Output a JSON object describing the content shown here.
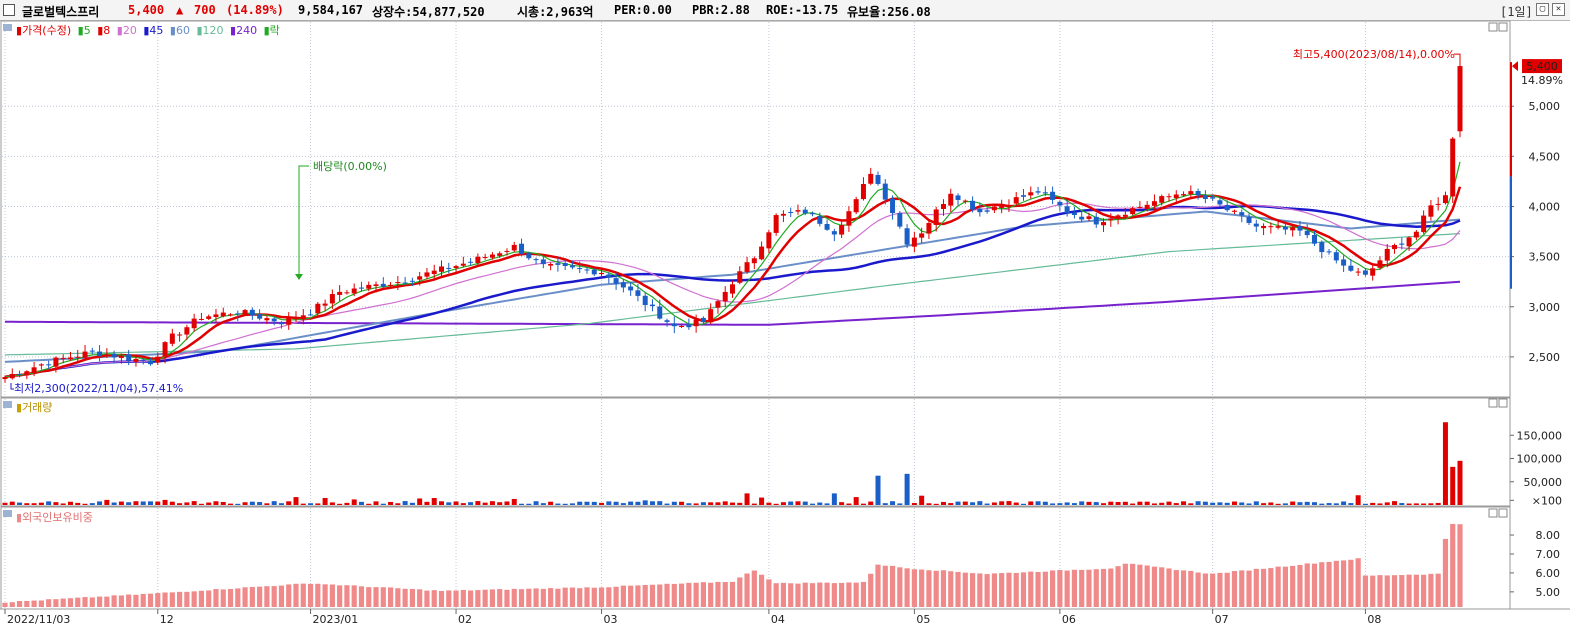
{
  "header": {
    "stock_name": "글로벌텍스프리",
    "price": "5,400",
    "change_arrow": "▲",
    "change": "700",
    "change_pct": "(14.89%)",
    "volume": "9,584,167",
    "listed_shares": "상장수:54,877,520",
    "market_cap": "시총:2,963억",
    "per": "PER:0.00",
    "pbr": "PBR:2.88",
    "roe": "ROE:-13.75",
    "retention": "유보율:256.08",
    "period": "[1일]"
  },
  "legend": {
    "price_label": "가격(수정)",
    "ma_items": [
      {
        "label": "5",
        "color": "#22aa22"
      },
      {
        "label": "8",
        "color": "#e00000"
      },
      {
        "label": "20",
        "color": "#d070d0"
      },
      {
        "label": "45",
        "color": "#1a1acc"
      },
      {
        "label": "60",
        "color": "#6a8fc8"
      },
      {
        "label": "120",
        "color": "#66bb99"
      },
      {
        "label": "240",
        "color": "#7722cc"
      }
    ],
    "rak_label": "락",
    "volume_label": "거래량",
    "foreign_label": "외국인보유비중"
  },
  "annotations": {
    "high": "최고5,400(2023/08/14),0.00%",
    "low": "최저2,300(2022/11/04),57.41%",
    "dividend": "배당락(0.00%)",
    "current_price_badge": "5,400",
    "current_pct": "14.89%"
  },
  "colors": {
    "up": "#e00000",
    "down": "#1a5ec8",
    "foreign": "#f08a8a"
  },
  "chart_data": [
    {
      "type": "candlestick",
      "title": "가격(수정)",
      "y_axis_ticks": [
        "5,000",
        "4,500",
        "4,000",
        "3,500",
        "3,000",
        "2,500"
      ],
      "ylim": [
        2150,
        5700
      ],
      "x_axis_labels": [
        "2022/11/03",
        "12",
        "2023/01",
        "02",
        "03",
        "04",
        "05",
        "06",
        "07",
        "08"
      ],
      "x_label_days": [
        0,
        21,
        42,
        62,
        82,
        105,
        125,
        145,
        166,
        187
      ],
      "num_days": 201,
      "close_knots": [
        [
          0,
          2300
        ],
        [
          6,
          2450
        ],
        [
          12,
          2550
        ],
        [
          20,
          2450
        ],
        [
          23,
          2700
        ],
        [
          27,
          2900
        ],
        [
          32,
          2950
        ],
        [
          38,
          2850
        ],
        [
          42,
          2950
        ],
        [
          46,
          3150
        ],
        [
          54,
          3250
        ],
        [
          64,
          3450
        ],
        [
          70,
          3600
        ],
        [
          74,
          3400
        ],
        [
          82,
          3350
        ],
        [
          86,
          3150
        ],
        [
          92,
          2800
        ],
        [
          96,
          2850
        ],
        [
          100,
          3250
        ],
        [
          103,
          3500
        ],
        [
          106,
          3900
        ],
        [
          110,
          3950
        ],
        [
          114,
          3750
        ],
        [
          117,
          4050
        ],
        [
          119,
          4350
        ],
        [
          121,
          4100
        ],
        [
          124,
          3650
        ],
        [
          126,
          3750
        ],
        [
          130,
          4150
        ],
        [
          134,
          3950
        ],
        [
          138,
          4050
        ],
        [
          142,
          4150
        ],
        [
          146,
          3950
        ],
        [
          150,
          3850
        ],
        [
          156,
          4000
        ],
        [
          162,
          4150
        ],
        [
          166,
          4050
        ],
        [
          172,
          3800
        ],
        [
          178,
          3750
        ],
        [
          184,
          3400
        ],
        [
          187,
          3300
        ],
        [
          190,
          3550
        ],
        [
          194,
          3750
        ],
        [
          196,
          4000
        ],
        [
          198,
          4100
        ],
        [
          199,
          4700
        ],
        [
          200,
          5400
        ]
      ],
      "moving_average_periods": [
        5,
        8,
        20,
        45,
        60,
        120,
        240
      ],
      "ma240_knots": [
        [
          0,
          2850
        ],
        [
          105,
          2820
        ],
        [
          130,
          2920
        ],
        [
          160,
          3050
        ],
        [
          200,
          3250
        ]
      ],
      "ma120_knots": [
        [
          0,
          2520
        ],
        [
          40,
          2580
        ],
        [
          80,
          2830
        ],
        [
          120,
          3200
        ],
        [
          160,
          3550
        ],
        [
          200,
          3730
        ]
      ],
      "ma60_knots": [
        [
          0,
          2450
        ],
        [
          30,
          2560
        ],
        [
          60,
          2950
        ],
        [
          82,
          3220
        ],
        [
          100,
          3320
        ],
        [
          140,
          3800
        ],
        [
          165,
          3950
        ],
        [
          185,
          3780
        ],
        [
          200,
          3870
        ]
      ]
    },
    {
      "type": "bar",
      "title": "거래량",
      "y_axis_ticks": [
        "150,000",
        "100,000",
        "50,000",
        "×100"
      ],
      "ylim": [
        0,
        200000
      ],
      "units": "×100",
      "spikes": [
        [
          14,
          11000
        ],
        [
          22,
          11000
        ],
        [
          40,
          17000
        ],
        [
          44,
          15000
        ],
        [
          48,
          12000
        ],
        [
          57,
          14000
        ],
        [
          59,
          15000
        ],
        [
          70,
          13000
        ],
        [
          88,
          10000
        ],
        [
          102,
          25000
        ],
        [
          104,
          16000
        ],
        [
          114,
          25000
        ],
        [
          117,
          17000
        ],
        [
          120,
          63000
        ],
        [
          124,
          67000
        ],
        [
          126,
          20000
        ],
        [
          186,
          21000
        ],
        [
          198,
          178000
        ],
        [
          199,
          82000
        ],
        [
          200,
          95000
        ]
      ]
    },
    {
      "type": "bar",
      "title": "외국인보유비중",
      "y_axis_ticks": [
        "8.00",
        "7.00",
        "6.00",
        "5.00"
      ],
      "ylim": [
        4.2,
        8.9
      ],
      "knots": [
        [
          0,
          4.45
        ],
        [
          20,
          4.9
        ],
        [
          42,
          5.45
        ],
        [
          60,
          5.05
        ],
        [
          82,
          5.25
        ],
        [
          100,
          5.55
        ],
        [
          103,
          6.15
        ],
        [
          106,
          5.45
        ],
        [
          118,
          5.5
        ],
        [
          120,
          6.45
        ],
        [
          124,
          6.25
        ],
        [
          135,
          5.95
        ],
        [
          152,
          6.25
        ],
        [
          154,
          6.5
        ],
        [
          166,
          5.95
        ],
        [
          182,
          6.6
        ],
        [
          186,
          6.75
        ],
        [
          187,
          5.85
        ],
        [
          197,
          5.95
        ],
        [
          198,
          7.8
        ],
        [
          199,
          8.6
        ],
        [
          200,
          8.6
        ]
      ]
    }
  ]
}
